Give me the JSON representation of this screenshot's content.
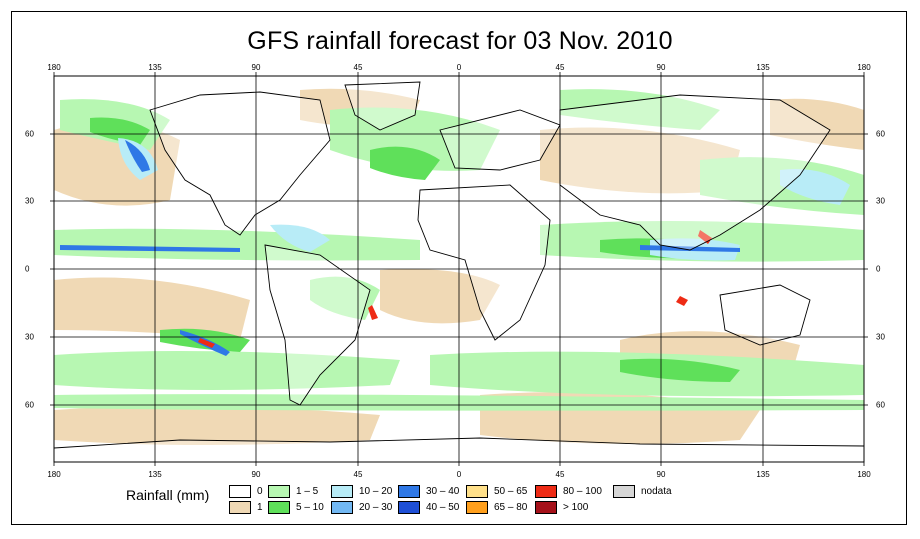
{
  "title": "GFS rainfall forecast for 03 Nov. 2010",
  "axes": {
    "top_ticks": [
      "180",
      "135",
      "90",
      "45",
      "0",
      "45",
      "90",
      "135",
      "180"
    ],
    "bottom_ticks": [
      "180",
      "135",
      "90",
      "45",
      "0",
      "45",
      "90",
      "135",
      "180"
    ],
    "left_ticks": [
      "60",
      "30",
      "0",
      "30",
      "60"
    ],
    "right_ticks": [
      "60",
      "30",
      "0",
      "30",
      "60"
    ]
  },
  "legend": {
    "title": "Rainfall (mm)",
    "items": [
      {
        "label": "0",
        "color": "#ffffff"
      },
      {
        "label": "1",
        "color": "#f0d9b5"
      },
      {
        "label": "1 – 5",
        "color": "#b7f7b2"
      },
      {
        "label": "5 – 10",
        "color": "#5fe05a"
      },
      {
        "label": "10 – 20",
        "color": "#b8ecf7"
      },
      {
        "label": "20 – 30",
        "color": "#72b8f3"
      },
      {
        "label": "30 – 40",
        "color": "#2f78e6"
      },
      {
        "label": "40 – 50",
        "color": "#1e4fd6"
      },
      {
        "label": "50 – 65",
        "color": "#ffe08a"
      },
      {
        "label": "65 – 80",
        "color": "#ff9f1c"
      },
      {
        "label": "80 – 100",
        "color": "#ee2b15"
      },
      {
        "label": "> 100",
        "color": "#a5111a"
      },
      {
        "label": "nodata",
        "color": "#d6d6d6"
      }
    ]
  }
}
